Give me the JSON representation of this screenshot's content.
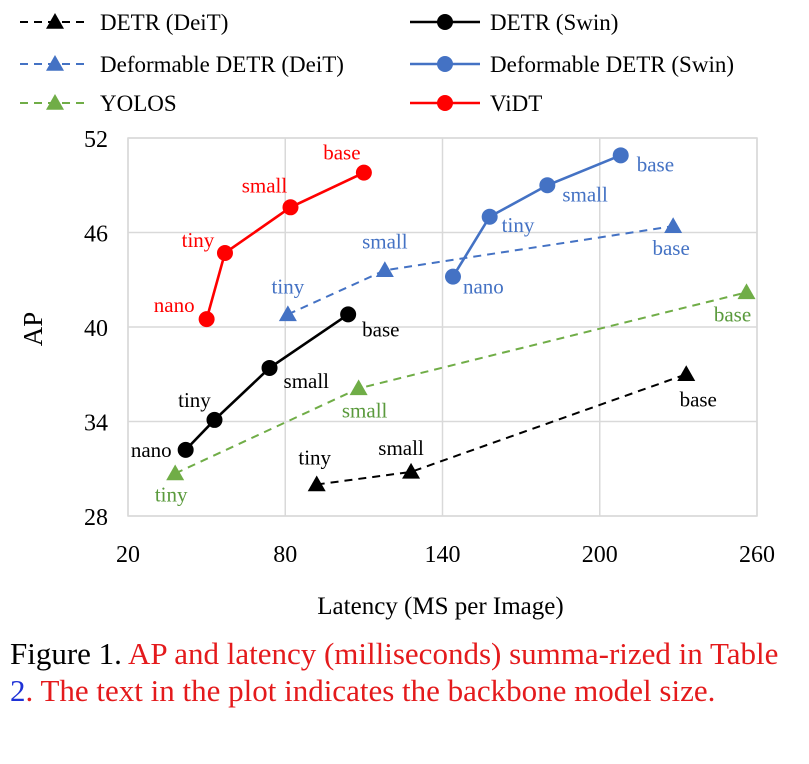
{
  "chart_data": {
    "type": "line",
    "xlabel": "Latency (MS per Image)",
    "ylabel": "AP",
    "xlim": [
      20,
      260
    ],
    "ylim": [
      28,
      52
    ],
    "xticks": [
      20,
      80,
      140,
      200,
      260
    ],
    "yticks": [
      28,
      34,
      40,
      46,
      52
    ],
    "grid": true,
    "legend_position": "top",
    "series": [
      {
        "name": "DETR (DeiT)",
        "color": "#000000",
        "marker": "triangle",
        "dash": true,
        "labels": [
          "tiny",
          "small",
          "base"
        ],
        "x": [
          92,
          128,
          233
        ],
        "y": [
          30.0,
          30.8,
          37.0
        ]
      },
      {
        "name": "DETR (Swin)",
        "color": "#000000",
        "marker": "circle",
        "dash": false,
        "labels": [
          "nano",
          "tiny",
          "small",
          "base"
        ],
        "x": [
          42,
          53,
          74,
          104
        ],
        "y": [
          32.2,
          34.1,
          37.4,
          40.8
        ]
      },
      {
        "name": "Deformable DETR (DeiT)",
        "color": "#4472c4",
        "marker": "triangle",
        "dash": true,
        "labels": [
          "tiny",
          "small",
          "base"
        ],
        "x": [
          81,
          118,
          228
        ],
        "y": [
          40.8,
          43.6,
          46.4
        ]
      },
      {
        "name": "Deformable DETR (Swin)",
        "color": "#4472c4",
        "marker": "circle",
        "dash": false,
        "labels": [
          "nano",
          "tiny",
          "small",
          "base"
        ],
        "x": [
          144,
          158,
          180,
          208
        ],
        "y": [
          43.2,
          47.0,
          49.0,
          50.9
        ]
      },
      {
        "name": "YOLOS",
        "color": "#70ad47",
        "marker": "triangle",
        "dash": true,
        "labels": [
          "tiny",
          "small",
          "base"
        ],
        "x": [
          38,
          108,
          256
        ],
        "y": [
          30.7,
          36.1,
          42.2
        ]
      },
      {
        "name": "ViDT",
        "color": "#ff0000",
        "marker": "circle",
        "dash": false,
        "labels": [
          "nano",
          "tiny",
          "small",
          "base"
        ],
        "x": [
          50,
          57,
          82,
          110
        ],
        "y": [
          40.5,
          44.7,
          47.6,
          49.8
        ]
      }
    ]
  },
  "caption": {
    "prefix": "Figure 1.",
    "part1": "AP and latency (milliseconds) summa-rized in Table",
    "ref": "2",
    "part2": ". The text in the plot indicates the backbone model size."
  }
}
